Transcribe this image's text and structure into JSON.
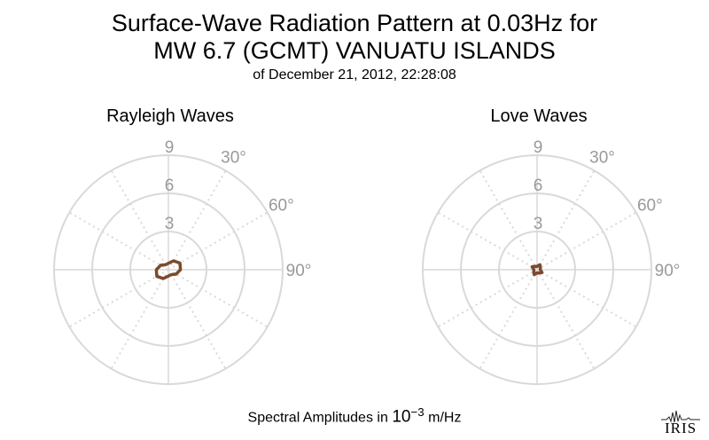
{
  "header": {
    "title_line1": "Surface-Wave Radiation Pattern at 0.03Hz for",
    "title_line2": "MW 6.7 (GCMT) VANUATU ISLANDS",
    "subtitle": "of December 21, 2012, 22:28:08"
  },
  "footer": {
    "label_prefix": "Spectral Amplitudes in",
    "power_base": "10",
    "power_exp": "−3",
    "unit": "m/Hz"
  },
  "logo": {
    "text": "IRIS"
  },
  "colors": {
    "pattern": "#7b4a2d",
    "grid": "#d9d9d9",
    "tick_label": "#999999"
  },
  "chart_data": [
    {
      "type": "polar-line",
      "title": "Rayleigh Waves",
      "r_ticks": [
        "3",
        "6",
        "9"
      ],
      "r_max": 9,
      "angle_labels": [
        "30°",
        "60°",
        "90°"
      ],
      "angle_step_deg": 30,
      "series": [
        {
          "azimuth_deg": [
            0,
            30,
            60,
            90,
            120,
            150,
            180,
            210,
            240,
            270,
            300,
            330,
            360
          ],
          "amplitude": [
            0.5,
            0.8,
            1.05,
            0.95,
            0.7,
            0.45,
            0.5,
            0.8,
            1.05,
            0.95,
            0.7,
            0.45,
            0.5
          ]
        }
      ]
    },
    {
      "type": "polar-line",
      "title": "Love Waves",
      "r_ticks": [
        "3",
        "6",
        "9"
      ],
      "r_max": 9,
      "angle_labels": [
        "30°",
        "60°",
        "90°"
      ],
      "angle_step_deg": 30,
      "series": [
        {
          "azimuth_deg": [
            0,
            30,
            60,
            90,
            120,
            150,
            180,
            210,
            240,
            270,
            300,
            330,
            360
          ],
          "amplitude": [
            0.25,
            0.45,
            0.3,
            0.25,
            0.45,
            0.3,
            0.25,
            0.45,
            0.3,
            0.25,
            0.45,
            0.3,
            0.25
          ]
        }
      ]
    }
  ]
}
